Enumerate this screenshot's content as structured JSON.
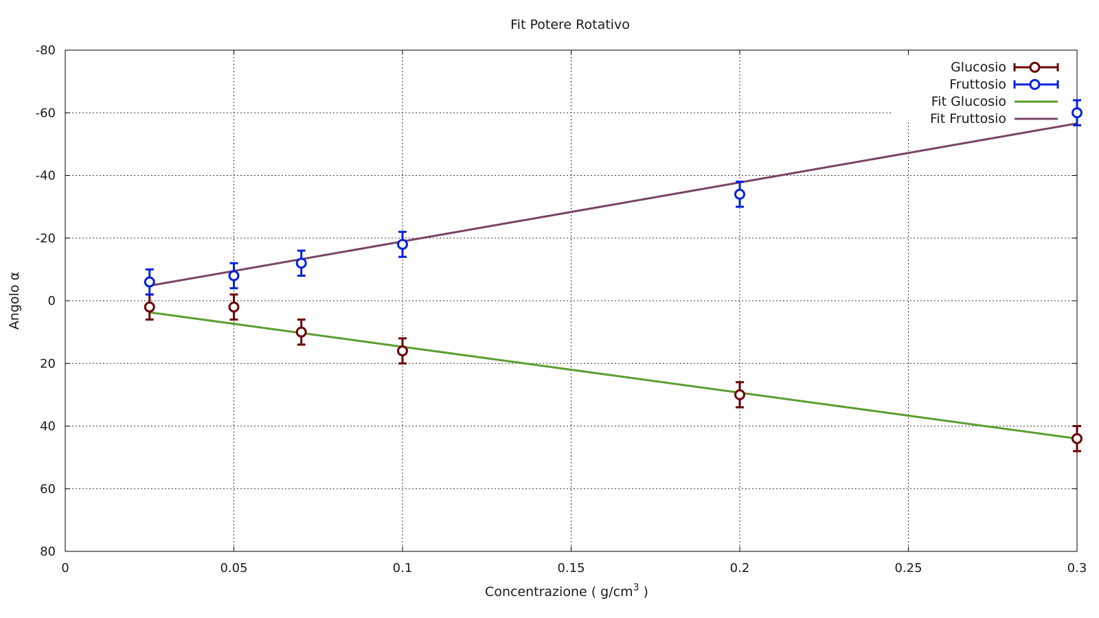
{
  "chart_data": {
    "type": "scatter",
    "title": "Fit Potere Rotativo",
    "xlabel": "Concentrazione ( g/cm",
    "xlabel_sup": "3",
    "xlabel_end": " )",
    "ylabel": "Angolo α",
    "xlim": [
      0,
      0.3
    ],
    "ylim": [
      80,
      -80
    ],
    "y_reversed": true,
    "x_ticks": [
      "0",
      "0.05",
      "0.1",
      "0.15",
      "0.2",
      "0.25",
      "0.3"
    ],
    "x_tick_values": [
      0,
      0.05,
      0.1,
      0.15,
      0.2,
      0.25,
      0.3
    ],
    "y_ticks": [
      "-80",
      "-60",
      "-40",
      "-20",
      "0",
      "20",
      "40",
      "60",
      "80"
    ],
    "y_tick_values": [
      -80,
      -60,
      -40,
      -20,
      0,
      20,
      40,
      60,
      80
    ],
    "grid": true,
    "legend_position": "top-right",
    "series": [
      {
        "name": "Glucosio",
        "kind": "errorbar",
        "color": "#6b0000",
        "x": [
          0.025,
          0.05,
          0.07,
          0.1,
          0.2,
          0.3
        ],
        "y": [
          2,
          2,
          10,
          16,
          30,
          44
        ],
        "err": [
          4,
          4,
          4,
          4,
          4,
          4
        ]
      },
      {
        "name": "Fruttosio",
        "kind": "errorbar",
        "color": "#0022dd",
        "x": [
          0.025,
          0.05,
          0.07,
          0.1,
          0.2,
          0.3
        ],
        "y": [
          -6,
          -8,
          -12,
          -18,
          -34,
          -60
        ],
        "err": [
          4,
          4,
          4,
          4,
          4,
          4
        ]
      },
      {
        "name": "Fit Glucosio",
        "kind": "line",
        "color": "#5a9e2f",
        "x": [
          0.025,
          0.3
        ],
        "y": [
          3.7,
          44.0
        ]
      },
      {
        "name": "Fit Fruttosio",
        "kind": "line",
        "color": "#774466",
        "x": [
          0.025,
          0.3
        ],
        "y": [
          -4.8,
          -56.6
        ]
      }
    ]
  }
}
